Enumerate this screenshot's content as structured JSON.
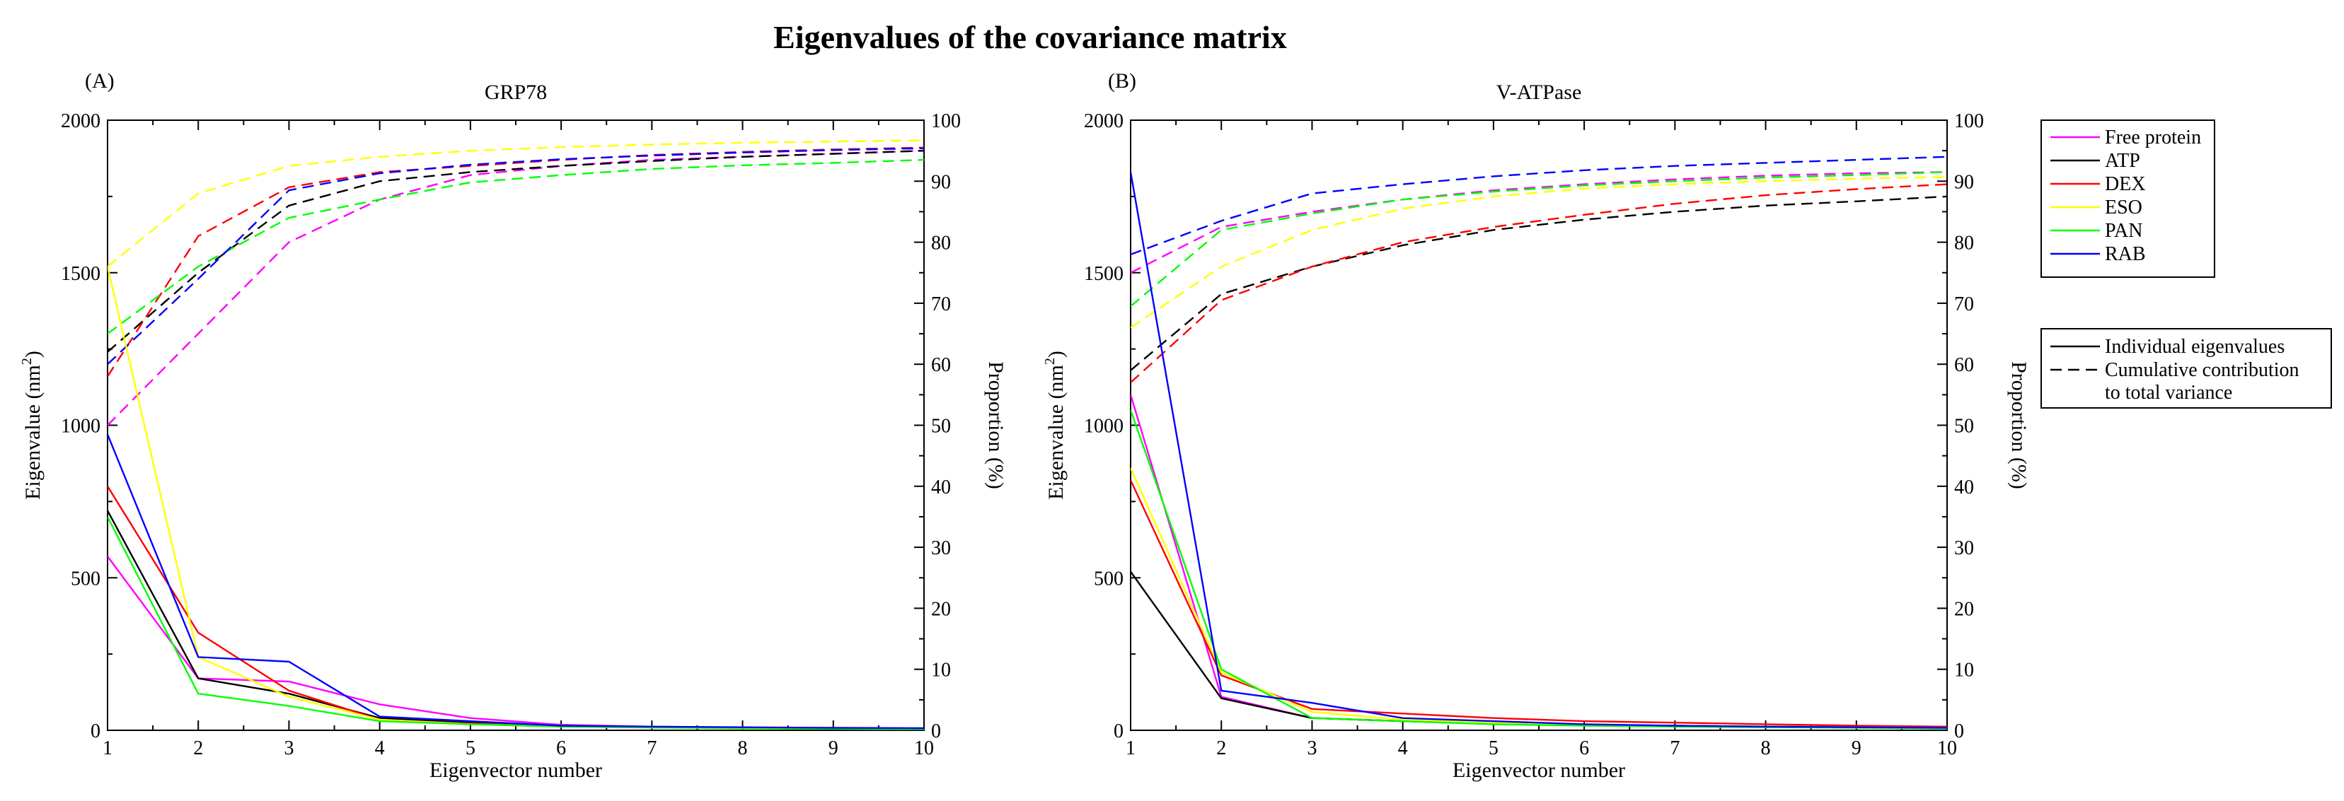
{
  "figure_title": "Eigenvalues of the covariance matrix",
  "legend": {
    "series": [
      {
        "name": "Free protein",
        "color": "#ff00ff"
      },
      {
        "name": "ATP",
        "color": "#000000"
      },
      {
        "name": "DEX",
        "color": "#ff0000"
      },
      {
        "name": "ESO",
        "color": "#ffff00"
      },
      {
        "name": "PAN",
        "color": "#00ff00"
      },
      {
        "name": "RAB",
        "color": "#0000ff"
      }
    ],
    "styles": [
      {
        "label": "Individual eigenvalues",
        "dash": "solid"
      },
      {
        "label": "Cumulative contribution",
        "label2": "to total variance",
        "dash": "dashed"
      }
    ]
  },
  "chart_data": [
    {
      "type": "line",
      "panel": "(A)",
      "title": "GRP78",
      "xlabel": "Eigenvector number",
      "ylabel": "Eigenvalue (nm",
      "ylabel_sup": "2",
      "ylabel_close": ")",
      "y2label": "Proportion (%)",
      "xlim": [
        1,
        10
      ],
      "ylim": [
        0,
        2000
      ],
      "y2lim": [
        0,
        100
      ],
      "xticks": [
        1,
        2,
        3,
        4,
        5,
        6,
        7,
        8,
        9,
        10
      ],
      "yticks": [
        0,
        500,
        1000,
        1500,
        2000
      ],
      "y2ticks": [
        0,
        10,
        20,
        30,
        40,
        50,
        60,
        70,
        80,
        90,
        100
      ],
      "x": [
        1,
        2,
        3,
        4,
        5,
        6,
        7,
        8,
        9,
        10
      ],
      "eigenvalues": [
        {
          "name": "Free protein",
          "values": [
            570,
            170,
            160,
            85,
            40,
            18,
            12,
            9,
            7,
            5
          ]
        },
        {
          "name": "ATP",
          "values": [
            720,
            170,
            120,
            40,
            25,
            15,
            10,
            7,
            5,
            4
          ]
        },
        {
          "name": "DEX",
          "values": [
            800,
            320,
            130,
            35,
            22,
            14,
            10,
            7,
            5,
            4
          ]
        },
        {
          "name": "ESO",
          "values": [
            1520,
            240,
            110,
            35,
            20,
            12,
            9,
            6,
            5,
            4
          ]
        },
        {
          "name": "PAN",
          "values": [
            700,
            120,
            80,
            30,
            20,
            12,
            9,
            7,
            5,
            4
          ]
        },
        {
          "name": "RAB",
          "values": [
            970,
            240,
            225,
            45,
            30,
            15,
            12,
            10,
            8,
            7
          ]
        }
      ],
      "cumulative": [
        {
          "name": "Free protein",
          "values": [
            50,
            65,
            80,
            87,
            91,
            92.5,
            93.5,
            94,
            94.5,
            95
          ]
        },
        {
          "name": "ATP",
          "values": [
            62,
            75,
            86,
            90,
            91.5,
            92.5,
            93.3,
            94,
            94.5,
            95
          ]
        },
        {
          "name": "DEX",
          "values": [
            58,
            81,
            89,
            91.5,
            92.5,
            93.5,
            94.3,
            94.8,
            95.2,
            95.5
          ]
        },
        {
          "name": "ESO",
          "values": [
            76,
            88,
            92.5,
            94,
            95,
            95.6,
            96,
            96.3,
            96.5,
            96.7
          ]
        },
        {
          "name": "PAN",
          "values": [
            65,
            76,
            84,
            87,
            89.8,
            91,
            92,
            92.6,
            93,
            93.5
          ]
        },
        {
          "name": "RAB",
          "values": [
            60,
            74,
            88.5,
            91.3,
            92.7,
            93.6,
            94.2,
            94.7,
            95.1,
            95.4
          ]
        }
      ]
    },
    {
      "type": "line",
      "panel": "(B)",
      "title": "V-ATPase",
      "xlabel": "Eigenvector number",
      "ylabel": "Eigenvalue (nm",
      "ylabel_sup": "2",
      "ylabel_close": ")",
      "y2label": "Proportion (%)",
      "xlim": [
        1,
        10
      ],
      "ylim": [
        0,
        2000
      ],
      "y2lim": [
        0,
        100
      ],
      "xticks": [
        1,
        2,
        3,
        4,
        5,
        6,
        7,
        8,
        9,
        10
      ],
      "yticks": [
        0,
        500,
        1000,
        1500,
        2000
      ],
      "y2ticks": [
        0,
        10,
        20,
        30,
        40,
        50,
        60,
        70,
        80,
        90,
        100
      ],
      "x": [
        1,
        2,
        3,
        4,
        5,
        6,
        7,
        8,
        9,
        10
      ],
      "eigenvalues": [
        {
          "name": "Free protein",
          "values": [
            1100,
            110,
            40,
            30,
            22,
            18,
            15,
            12,
            10,
            8
          ]
        },
        {
          "name": "ATP",
          "values": [
            520,
            105,
            40,
            30,
            22,
            18,
            15,
            12,
            10,
            8
          ]
        },
        {
          "name": "DEX",
          "values": [
            820,
            180,
            70,
            55,
            40,
            30,
            25,
            20,
            15,
            12
          ]
        },
        {
          "name": "ESO",
          "values": [
            860,
            190,
            60,
            35,
            25,
            18,
            14,
            12,
            10,
            8
          ]
        },
        {
          "name": "PAN",
          "values": [
            1050,
            200,
            40,
            30,
            20,
            15,
            12,
            10,
            8,
            6
          ]
        },
        {
          "name": "RAB",
          "values": [
            1830,
            130,
            90,
            40,
            30,
            20,
            15,
            12,
            10,
            8
          ]
        }
      ],
      "cumulative": [
        {
          "name": "Free protein",
          "values": [
            75,
            82.5,
            85,
            87,
            88.5,
            89.5,
            90.3,
            90.9,
            91.3,
            91.5
          ]
        },
        {
          "name": "ATP",
          "values": [
            59,
            71.5,
            76,
            79.5,
            82,
            83.7,
            85,
            86,
            86.7,
            87.5
          ]
        },
        {
          "name": "DEX",
          "values": [
            57,
            70.5,
            76,
            80,
            82.5,
            84.5,
            86.3,
            87.7,
            88.7,
            89.5
          ]
        },
        {
          "name": "ESO",
          "values": [
            66,
            76,
            82,
            85.5,
            87.5,
            88.8,
            89.5,
            90,
            90.4,
            90.7
          ]
        },
        {
          "name": "PAN",
          "values": [
            69.5,
            82,
            84.7,
            87,
            88.3,
            89.3,
            90,
            90.6,
            91,
            91.5
          ]
        },
        {
          "name": "RAB",
          "values": [
            78,
            83.5,
            88,
            89.5,
            90.8,
            91.8,
            92.5,
            93,
            93.5,
            94
          ]
        }
      ]
    }
  ]
}
